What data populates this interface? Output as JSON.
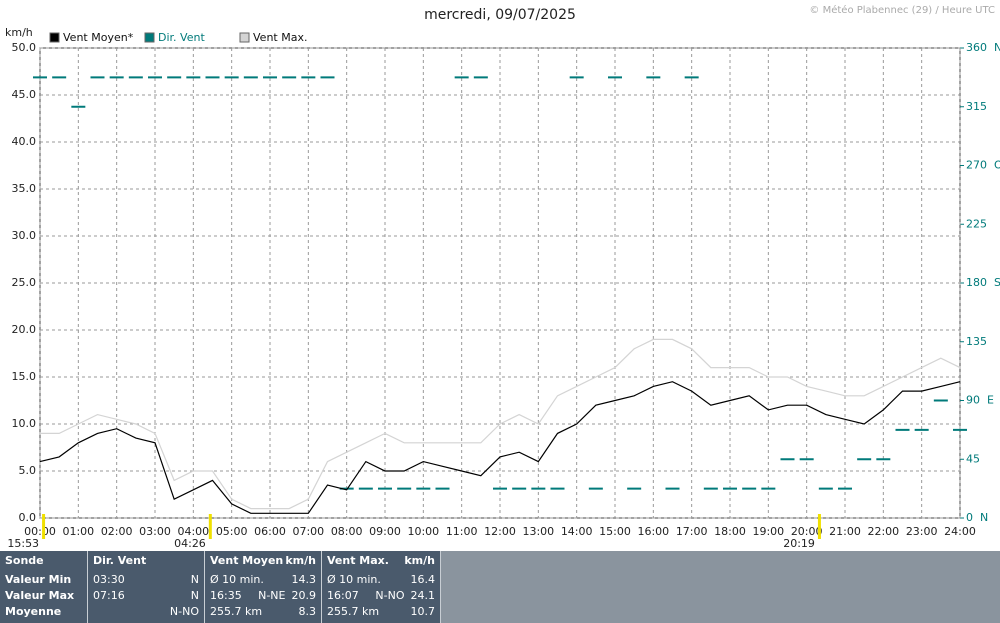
{
  "chart_data": {
    "type": "line",
    "title": "mercredi, 09/07/2025",
    "credit": "© Météo Plabennec (29) / Heure UTC",
    "ylabel": "km/h",
    "x": [
      0,
      0.5,
      1,
      1.5,
      2,
      2.5,
      3,
      3.5,
      4,
      4.5,
      5,
      5.5,
      6,
      6.5,
      7,
      7.5,
      8,
      8.5,
      9,
      9.5,
      10,
      10.5,
      11,
      11.5,
      12,
      12.5,
      13,
      13.5,
      14,
      14.5,
      15,
      15.5,
      16,
      16.5,
      17,
      17.5,
      18,
      18.5,
      19,
      19.5,
      20,
      20.5,
      21,
      21.5,
      22,
      22.5,
      23,
      23.5,
      24
    ],
    "xlim": [
      0,
      24
    ],
    "xticks": [
      {
        "value": 0,
        "label": "00:00"
      },
      {
        "value": 1,
        "label": "01:00"
      },
      {
        "value": 2,
        "label": "02:00"
      },
      {
        "value": 3,
        "label": "03:00"
      },
      {
        "value": 4,
        "label": "04:00"
      },
      {
        "value": 5,
        "label": "05:00"
      },
      {
        "value": 6,
        "label": "06:00"
      },
      {
        "value": 7,
        "label": "07:00"
      },
      {
        "value": 8,
        "label": "08:00"
      },
      {
        "value": 9,
        "label": "09:00"
      },
      {
        "value": 10,
        "label": "10:00"
      },
      {
        "value": 11,
        "label": "11:00"
      },
      {
        "value": 12,
        "label": "12:00"
      },
      {
        "value": 13,
        "label": "13:00"
      },
      {
        "value": 14,
        "label": "14:00"
      },
      {
        "value": 15,
        "label": "15:00"
      },
      {
        "value": 16,
        "label": "16:00"
      },
      {
        "value": 17,
        "label": "17:00"
      },
      {
        "value": 18,
        "label": "18:00"
      },
      {
        "value": 19,
        "label": "19:00"
      },
      {
        "value": 20,
        "label": "20:00"
      },
      {
        "value": 21,
        "label": "21:00"
      },
      {
        "value": 22,
        "label": "22:00"
      },
      {
        "value": 23,
        "label": "23:00"
      },
      {
        "value": 24,
        "label": "24:00"
      }
    ],
    "ylim": [
      0,
      50
    ],
    "yticks": [
      {
        "value": 0,
        "label": "0.0"
      },
      {
        "value": 5,
        "label": "5.0"
      },
      {
        "value": 10,
        "label": "10.0"
      },
      {
        "value": 15,
        "label": "15.0"
      },
      {
        "value": 20,
        "label": "20.0"
      },
      {
        "value": 25,
        "label": "25.0"
      },
      {
        "value": 30,
        "label": "30.0"
      },
      {
        "value": 35,
        "label": "35.0"
      },
      {
        "value": 40,
        "label": "40.0"
      },
      {
        "value": 45,
        "label": "45.0"
      },
      {
        "value": 50,
        "label": "50.0"
      }
    ],
    "y2lim": [
      0,
      360
    ],
    "y2ticks": [
      {
        "value": 0,
        "label": "0  N"
      },
      45,
      {
        "value": 90,
        "label": "90  E"
      },
      135,
      {
        "value": 180,
        "label": "180  S"
      },
      225,
      {
        "value": 270,
        "label": "270  O"
      },
      315,
      {
        "value": 360,
        "label": "360  N"
      }
    ],
    "grid": true,
    "series": [
      {
        "name": "Vent Max.",
        "color": "#d4d4d4",
        "values": [
          9,
          9,
          10,
          11,
          10.5,
          10,
          9,
          4,
          5,
          5,
          2,
          1,
          1,
          1,
          2,
          6,
          7,
          8,
          9,
          8,
          8,
          8,
          8,
          8,
          10,
          11,
          10,
          13,
          14,
          15,
          16,
          18,
          19,
          19,
          18,
          16,
          16,
          16,
          15,
          15,
          14,
          13.5,
          13,
          13,
          14,
          15,
          16,
          17,
          16
        ]
      },
      {
        "name": "Dir. Vent",
        "color": "#007a7a",
        "axis": "y2",
        "style": "dash",
        "values": [
          337.5,
          337.5,
          315,
          337.5,
          337.5,
          337.5,
          337.5,
          337.5,
          337.5,
          337.5,
          337.5,
          337.5,
          337.5,
          337.5,
          337.5,
          337.5,
          22.5,
          22.5,
          22.5,
          22.5,
          22.5,
          22.5,
          337.5,
          337.5,
          22.5,
          22.5,
          22.5,
          22.5,
          337.5,
          22.5,
          337.5,
          22.5,
          337.5,
          22.5,
          337.5,
          22.5,
          22.5,
          22.5,
          22.5,
          45,
          45,
          22.5,
          22.5,
          45,
          45,
          67.5,
          67.5,
          90,
          67.5
        ]
      },
      {
        "name": "Vent Moyen*",
        "color": "#000000",
        "values": [
          6,
          6.5,
          8,
          9,
          9.5,
          8.5,
          8,
          2,
          3,
          4,
          1.5,
          0.5,
          0.5,
          0.5,
          0.5,
          3.5,
          3,
          6,
          5,
          5,
          6,
          5.5,
          5,
          4.5,
          6.5,
          7,
          6,
          9,
          10,
          12,
          12.5,
          13,
          14,
          14.5,
          13.5,
          12,
          12.5,
          13,
          11.5,
          12,
          12,
          11,
          10.5,
          10,
          11.5,
          13.5,
          13.5,
          14,
          14.5
        ]
      }
    ],
    "legend_order": [
      2,
      1,
      0
    ],
    "annotations": [
      {
        "label": "15:53",
        "x": 0.08
      },
      {
        "label": "04:26",
        "x": 4.43
      },
      {
        "label": "20:19",
        "x": 20.32
      }
    ]
  },
  "table": {
    "columns": [
      {
        "title": "Sonde",
        "rows": [
          [
            "Valeur Min"
          ],
          [
            "Valeur Max"
          ],
          [
            "Moyenne"
          ]
        ]
      },
      {
        "title": "Dir. Vent",
        "rows": [
          [
            "03:30",
            "N"
          ],
          [
            "07:16",
            "N"
          ],
          [
            "N-NO"
          ]
        ]
      },
      {
        "title": "Vent Moyen",
        "unit": "km/h",
        "rows": [
          [
            "Ø 10 min.",
            "14.3"
          ],
          [
            "16:35",
            "N-NE",
            "20.9"
          ],
          [
            "255.7 km",
            "8.3"
          ]
        ]
      },
      {
        "title": "Vent Max.",
        "unit": "km/h",
        "rows": [
          [
            "Ø 10 min.",
            "16.4"
          ],
          [
            "16:07",
            "N-NO",
            "24.1"
          ],
          [
            "255.7 km",
            "10.7"
          ]
        ]
      }
    ]
  }
}
